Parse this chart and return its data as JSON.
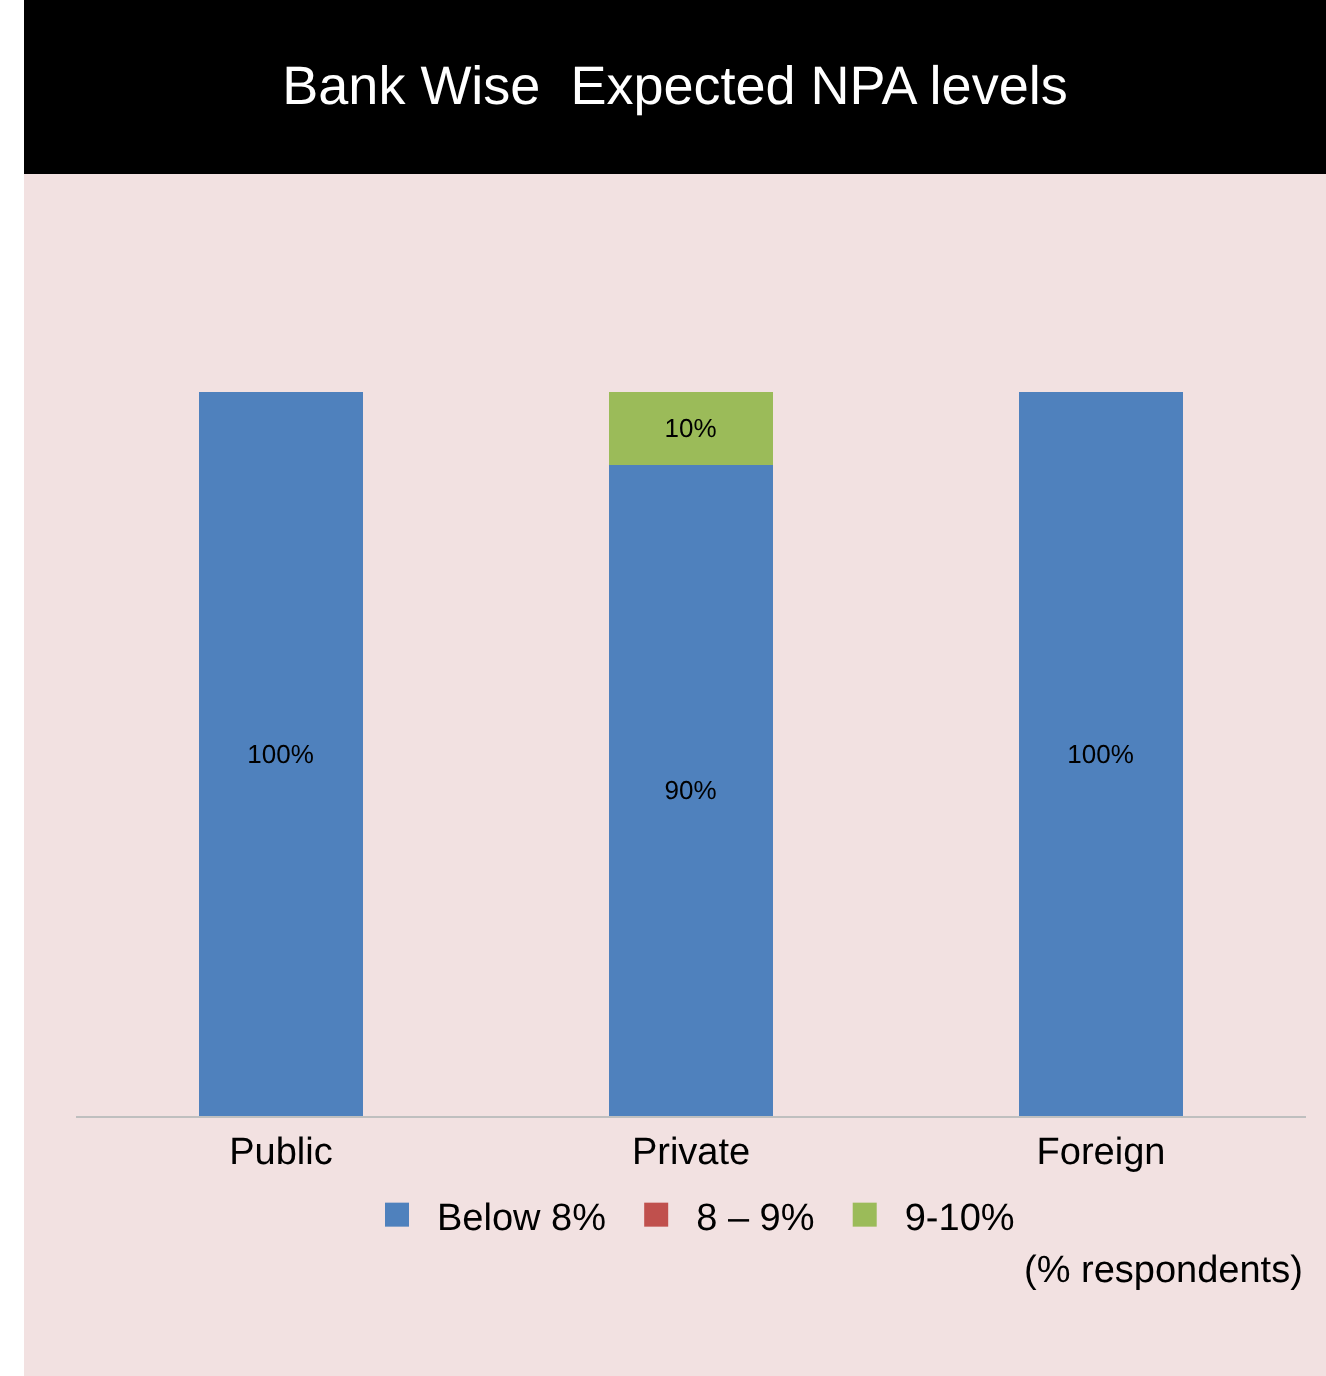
{
  "chart_data": {
    "type": "bar",
    "title": "Bank Wise  Expected NPA levels",
    "categories": [
      "Public",
      "Private",
      "Foreign"
    ],
    "stacked": true,
    "legend": "bottom",
    "series": [
      {
        "name": "Below 8%",
        "color": "#4f81bd",
        "values": [
          100,
          90,
          100
        ],
        "value_labels": [
          "100%",
          "90%",
          "100%"
        ]
      },
      {
        "name": "8 – 9%",
        "color": "#c0504d",
        "values": [
          null,
          null,
          null
        ]
      },
      {
        "name": "9-10%",
        "color": "#9bbb59",
        "values": [
          null,
          10,
          null
        ],
        "value_labels": [
          null,
          "10%",
          null
        ]
      }
    ],
    "annotations": [
      "(% respondents)"
    ]
  }
}
